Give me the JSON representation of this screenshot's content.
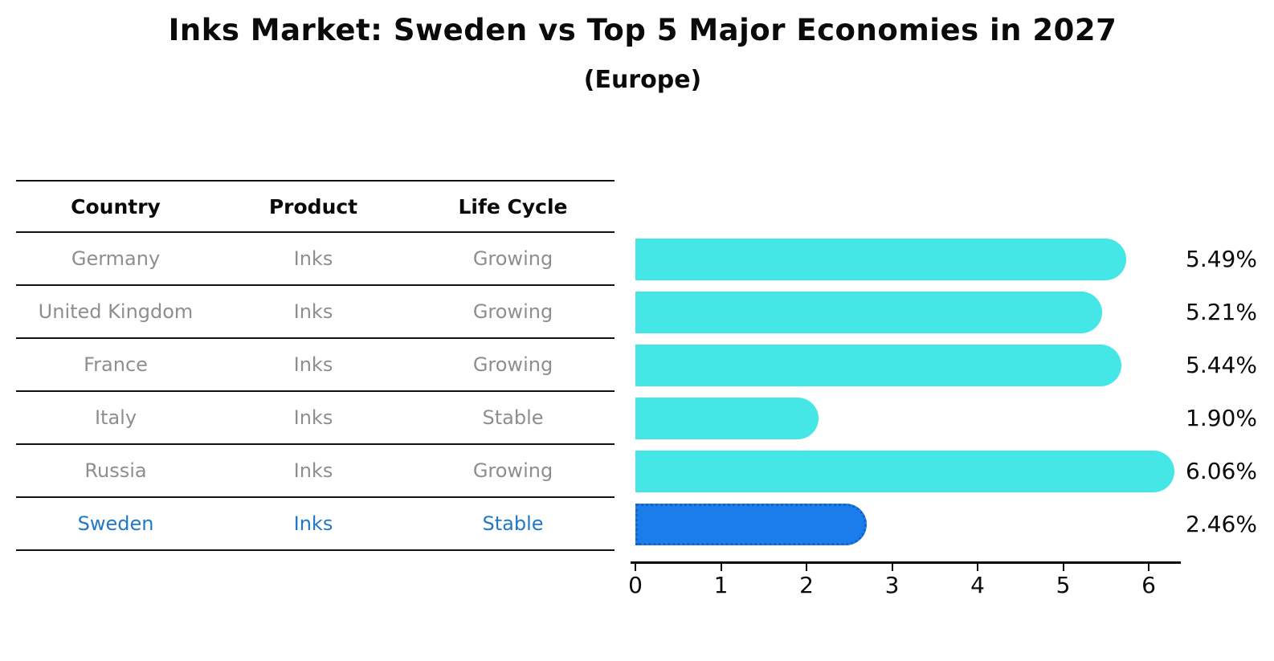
{
  "title": "Inks Market: Sweden vs Top 5 Major Economies in 2027",
  "subtitle": "(Europe)",
  "colors": {
    "bar": "#45E6E6",
    "highlight_bar": "#1B7CEC",
    "highlight_edge": "#1563C5",
    "highlight_text": "#1F78C8",
    "row_text": "#8E8E8E",
    "line": "#111111"
  },
  "table": {
    "headers": [
      "Country",
      "Product",
      "Life Cycle"
    ],
    "rows": [
      {
        "country": "Germany",
        "product": "Inks",
        "life_cycle": "Growing",
        "highlight": false
      },
      {
        "country": "United Kingdom",
        "product": "Inks",
        "life_cycle": "Growing",
        "highlight": false
      },
      {
        "country": "France",
        "product": "Inks",
        "life_cycle": "Growing",
        "highlight": false
      },
      {
        "country": "Italy",
        "product": "Inks",
        "life_cycle": "Stable",
        "highlight": false
      },
      {
        "country": "Russia",
        "product": "Inks",
        "life_cycle": "Growing",
        "highlight": false
      },
      {
        "country": "Sweden",
        "product": "Inks",
        "life_cycle": "Stable",
        "highlight": true
      }
    ]
  },
  "chart_data": {
    "type": "bar",
    "orientation": "horizontal",
    "title": "Inks Market: Sweden vs Top 5 Major Economies in 2027",
    "subtitle": "(Europe)",
    "categories": [
      "Germany",
      "United Kingdom",
      "France",
      "Italy",
      "Russia",
      "Sweden"
    ],
    "values": [
      5.49,
      5.21,
      5.44,
      1.9,
      6.06,
      2.46
    ],
    "value_labels": [
      "5.49%",
      "5.21%",
      "5.44%",
      "1.90%",
      "6.06%",
      "2.46%"
    ],
    "highlight_index": 5,
    "x_ticks": [
      0,
      1,
      2,
      3,
      4,
      5,
      6
    ],
    "xlim": [
      0,
      6.4
    ],
    "grid": false,
    "legend": false,
    "bar_color": "#45E6E6",
    "highlight_color": "#1B7CEC"
  }
}
